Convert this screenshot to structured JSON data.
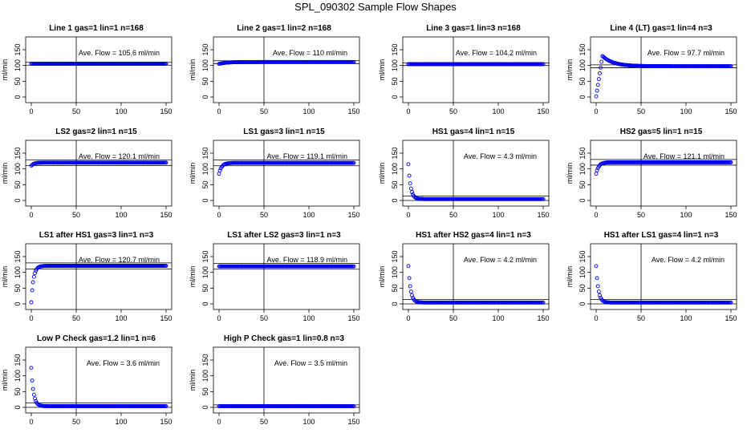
{
  "page_title": "SPL_090302  Sample Flow Shapes",
  "colors": {
    "points": "#0000ee",
    "frame": "#000000",
    "background": "#ffffff"
  },
  "chart_data": [
    {
      "type": "scatter",
      "title": "Line 1 gas=1 lin=1 n=168",
      "ylabel": "ml/min",
      "annotation": "Ave. Flow =  105.6  ml/min",
      "xlim": [
        0,
        150
      ],
      "ylim": [
        0,
        150
      ],
      "xticks": [
        "0",
        "50",
        "100",
        "150"
      ],
      "yticks": [
        "0",
        "50",
        "100",
        "150"
      ],
      "vline": 50,
      "hlines": [
        110,
        101
      ],
      "shape": "flat",
      "level": 105.6
    },
    {
      "type": "scatter",
      "title": "Line 2 gas=1 lin=2 n=168",
      "ylabel": "ml/min",
      "annotation": "Ave. Flow =  110  ml/min",
      "xlim": [
        0,
        150
      ],
      "ylim": [
        0,
        150
      ],
      "xticks": [
        "0",
        "50",
        "100",
        "150"
      ],
      "yticks": [
        "0",
        "50",
        "100",
        "150"
      ],
      "vline": 50,
      "hlines": [
        115,
        106
      ],
      "shape": "flat_rise",
      "level": 110
    },
    {
      "type": "scatter",
      "title": "Line 3 gas=1 lin=3 n=168",
      "ylabel": "ml/min",
      "annotation": "Ave. Flow =  104.2  ml/min",
      "xlim": [
        0,
        150
      ],
      "ylim": [
        0,
        150
      ],
      "xticks": [
        "0",
        "50",
        "100",
        "150"
      ],
      "yticks": [
        "0",
        "50",
        "100",
        "150"
      ],
      "vline": 50,
      "hlines": [
        108,
        100
      ],
      "shape": "flat",
      "level": 104.2
    },
    {
      "type": "scatter",
      "title": "Line 4 (LT) gas=1 lin=4 n=3",
      "ylabel": "ml/min",
      "annotation": "Ave. Flow =  97.7  ml/min",
      "xlim": [
        0,
        150
      ],
      "ylim": [
        0,
        150
      ],
      "xticks": [
        "0",
        "50",
        "100",
        "150"
      ],
      "yticks": [
        "0",
        "50",
        "100",
        "150"
      ],
      "vline": 50,
      "hlines": [
        102,
        93
      ],
      "shape": "overshoot",
      "level": 97.7,
      "peak": 130
    },
    {
      "type": "scatter",
      "title": "LS2 gas=2 lin=1 n=15",
      "ylabel": "ml/min",
      "annotation": "Ave. Flow =  120.1  ml/min",
      "xlim": [
        0,
        150
      ],
      "ylim": [
        0,
        150
      ],
      "xticks": [
        "0",
        "50",
        "100",
        "150"
      ],
      "yticks": [
        "0",
        "50",
        "100",
        "150"
      ],
      "vline": 50,
      "hlines": [
        129,
        111
      ],
      "shape": "ramp_up",
      "level": 120.1,
      "start": 110
    },
    {
      "type": "scatter",
      "title": "LS1 gas=3 lin=1 n=15",
      "ylabel": "ml/min",
      "annotation": "Ave. Flow =  119.1  ml/min",
      "xlim": [
        0,
        150
      ],
      "ylim": [
        0,
        150
      ],
      "xticks": [
        "0",
        "50",
        "100",
        "150"
      ],
      "yticks": [
        "0",
        "50",
        "100",
        "150"
      ],
      "vline": 50,
      "hlines": [
        128,
        110
      ],
      "shape": "ramp_up",
      "level": 119.1,
      "start": 85
    },
    {
      "type": "scatter",
      "title": "HS1 gas=4 lin=1 n=15",
      "ylabel": "ml/min",
      "annotation": "Ave. Flow =  4.3  ml/min",
      "xlim": [
        0,
        150
      ],
      "ylim": [
        0,
        150
      ],
      "xticks": [
        "0",
        "50",
        "100",
        "150"
      ],
      "yticks": [
        "0",
        "50",
        "100",
        "150"
      ],
      "vline": 50,
      "hlines": [
        14,
        0
      ],
      "shape": "decay",
      "level": 4.3,
      "start": 115
    },
    {
      "type": "scatter",
      "title": "HS2 gas=5 lin=1 n=15",
      "ylabel": "ml/min",
      "annotation": "Ave. Flow =  121.1  ml/min",
      "xlim": [
        0,
        150
      ],
      "ylim": [
        0,
        150
      ],
      "xticks": [
        "0",
        "50",
        "100",
        "150"
      ],
      "yticks": [
        "0",
        "50",
        "100",
        "150"
      ],
      "vline": 50,
      "hlines": [
        130,
        112
      ],
      "shape": "ramp_up",
      "level": 121.1,
      "start": 85
    },
    {
      "type": "scatter",
      "title": "LS1 after HS1 gas=3 lin=1 n=3",
      "ylabel": "ml/min",
      "annotation": "Ave. Flow =  120.7  ml/min",
      "xlim": [
        0,
        150
      ],
      "ylim": [
        0,
        150
      ],
      "xticks": [
        "0",
        "50",
        "100",
        "150"
      ],
      "yticks": [
        "0",
        "50",
        "100",
        "150"
      ],
      "vline": 50,
      "hlines": [
        130,
        111
      ],
      "shape": "ramp_up_fast",
      "level": 120.7,
      "start": 5
    },
    {
      "type": "scatter",
      "title": "LS1 after LS2 gas=3 lin=1 n=3",
      "ylabel": "ml/min",
      "annotation": "Ave. Flow =  118.9  ml/min",
      "xlim": [
        0,
        150
      ],
      "ylim": [
        0,
        150
      ],
      "xticks": [
        "0",
        "50",
        "100",
        "150"
      ],
      "yticks": [
        "0",
        "50",
        "100",
        "150"
      ],
      "vline": 50,
      "hlines": [
        128,
        110
      ],
      "shape": "flat",
      "level": 118.9
    },
    {
      "type": "scatter",
      "title": "HS1 after HS2 gas=4 lin=1 n=3",
      "ylabel": "ml/min",
      "annotation": "Ave. Flow =  4.2  ml/min",
      "xlim": [
        0,
        150
      ],
      "ylim": [
        0,
        150
      ],
      "xticks": [
        "0",
        "50",
        "100",
        "150"
      ],
      "yticks": [
        "0",
        "50",
        "100",
        "150"
      ],
      "vline": 50,
      "hlines": [
        14,
        0
      ],
      "shape": "decay",
      "level": 4.2,
      "start": 120
    },
    {
      "type": "scatter",
      "title": "HS1 after LS1 gas=4 lin=1 n=3",
      "ylabel": "ml/min",
      "annotation": "Ave. Flow =  4.2  ml/min",
      "xlim": [
        0,
        150
      ],
      "ylim": [
        0,
        150
      ],
      "xticks": [
        "0",
        "50",
        "100",
        "150"
      ],
      "yticks": [
        "0",
        "50",
        "100",
        "150"
      ],
      "vline": 50,
      "hlines": [
        14,
        0
      ],
      "shape": "decay",
      "level": 4.2,
      "start": 120
    },
    {
      "type": "scatter",
      "title": "Low P Check gas=1.2 lin=1 n=6",
      "ylabel": "ml/min",
      "annotation": "Ave. Flow =  3.6  ml/min",
      "xlim": [
        0,
        150
      ],
      "ylim": [
        0,
        150
      ],
      "xticks": [
        "0",
        "50",
        "100",
        "150"
      ],
      "yticks": [
        "0",
        "50",
        "100",
        "150"
      ],
      "vline": 50,
      "hlines": [
        14,
        0
      ],
      "shape": "decay",
      "level": 3.6,
      "start": 125
    },
    {
      "type": "scatter",
      "title": "High P Check gas=1 lin=0.8 n=3",
      "ylabel": "ml/min",
      "annotation": "Ave. Flow =  3.5  ml/min",
      "xlim": [
        0,
        150
      ],
      "ylim": [
        0,
        150
      ],
      "xticks": [
        "0",
        "50",
        "100",
        "150"
      ],
      "yticks": [
        "0",
        "50",
        "100",
        "150"
      ],
      "vline": 50,
      "hlines": [
        8,
        0
      ],
      "shape": "flat",
      "level": 3.5
    }
  ]
}
